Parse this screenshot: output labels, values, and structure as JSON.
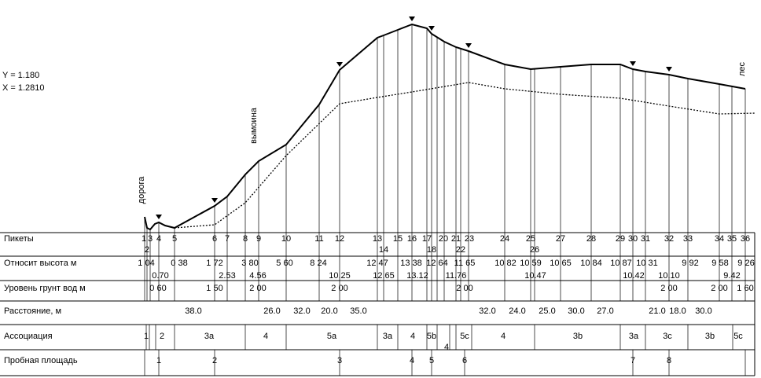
{
  "params": [
    "Y = 1.180",
    "X = 1.2810"
  ],
  "annotations": [
    "дорога",
    "вымоина",
    "лес"
  ],
  "rows": [
    {
      "label": "Пикеты",
      "items": [
        "1",
        "3",
        "4",
        "5",
        "6",
        "7",
        "8",
        "9",
        "10",
        "11",
        "12",
        "13",
        "15",
        "16",
        "17",
        "20",
        "21",
        "23",
        "24",
        "25",
        "27",
        "28",
        "29",
        "30",
        "31",
        "32",
        "33",
        "34",
        "35",
        "36"
      ],
      "sub_items": [
        "2",
        "14",
        "18",
        "22",
        "26"
      ]
    },
    {
      "label": "Относит высота м",
      "items": [
        "1 04",
        "0 38",
        "1 72",
        "3 80",
        "5 60",
        "8 24",
        "12 47",
        "13 38",
        "12 64",
        "11 65",
        "10 82",
        "10 59",
        "10 65",
        "10 84",
        "10 87",
        "10 31",
        "9 92",
        "9 58",
        "9 26"
      ],
      "sub_items": [
        "0.70",
        "2.53",
        "4.56",
        "10.25",
        "12.65",
        "13.12",
        "11.76",
        "10.47",
        "10.42",
        "10.10",
        "9.42"
      ]
    },
    {
      "label": "Уровень грунт вод м",
      "items": [
        "0 60",
        "1 50",
        "2 00",
        "2 00",
        "2 00",
        "2 00",
        "2 00",
        "1 60"
      ]
    },
    {
      "label": "Расстояние, м",
      "items": [
        "38.0",
        "26.0",
        "32.0",
        "20.0",
        "35.0",
        "32.0",
        "24.0",
        "25.0",
        "30.0",
        "27.0",
        "21.0",
        "18.0",
        "30.0"
      ]
    },
    {
      "label": "Ассоциация",
      "items": [
        "1",
        "2",
        "3a",
        "4",
        "5a",
        "3a",
        "4",
        "5b",
        "5c",
        "4",
        "3b",
        "3a",
        "3c",
        "3b",
        "5c"
      ],
      "sub_items": [
        "4"
      ]
    },
    {
      "label": "Пробная площадь",
      "items": [
        "1",
        "2",
        "3",
        "4",
        "5",
        "6",
        "7",
        "8"
      ]
    }
  ]
}
